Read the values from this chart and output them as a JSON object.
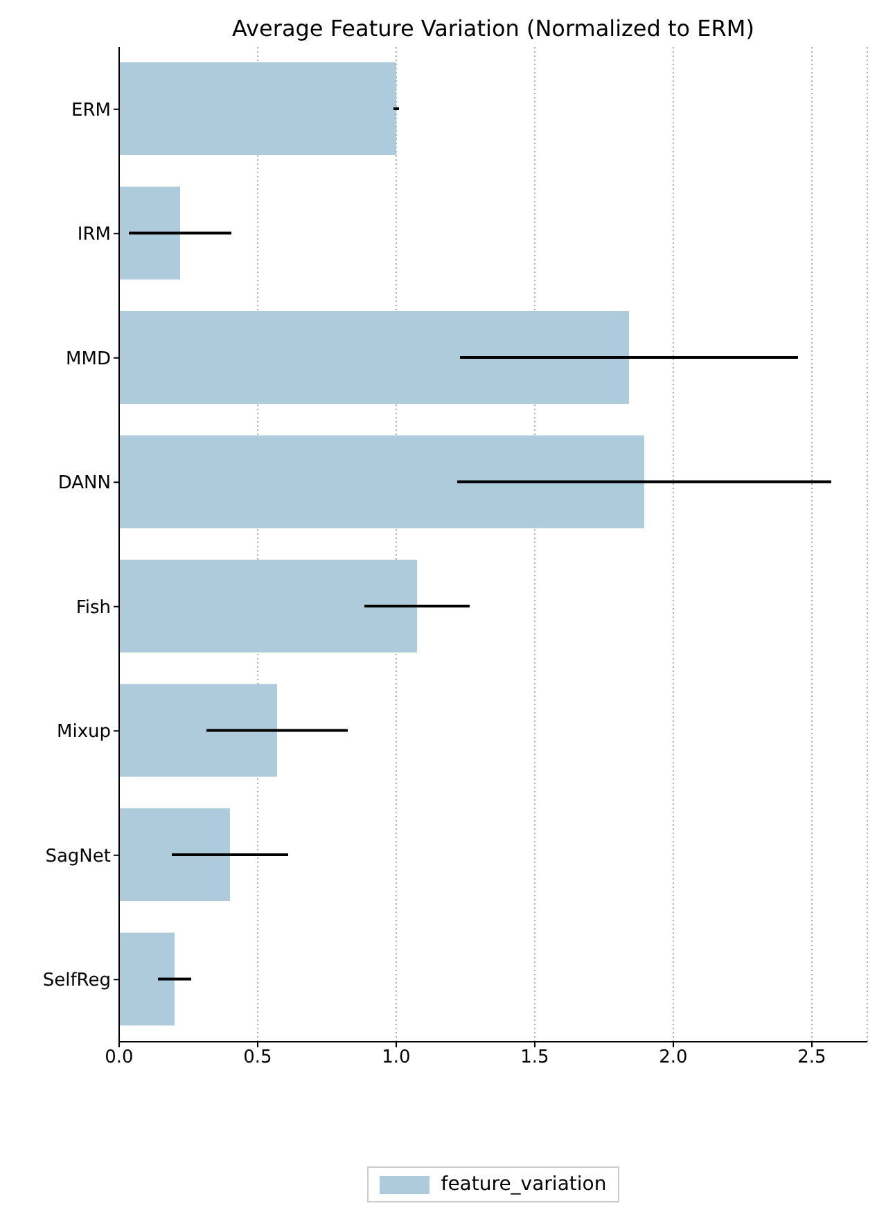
{
  "chart_data": {
    "type": "bar",
    "orientation": "horizontal",
    "title": "Average Feature Variation (Normalized to ERM)",
    "categories": [
      "ERM",
      "IRM",
      "MMD",
      "DANN",
      "Fish",
      "Mixup",
      "SagNet",
      "SelfReg"
    ],
    "series": [
      {
        "name": "feature_variation",
        "color": "#aecbdc",
        "values": [
          1.0,
          0.22,
          1.84,
          1.895,
          1.075,
          0.57,
          0.4,
          0.2
        ],
        "errors": [
          0.01,
          0.185,
          0.61,
          0.675,
          0.19,
          0.255,
          0.21,
          0.06
        ]
      }
    ],
    "xlim": [
      0,
      2.7
    ],
    "xticks": [
      {
        "value": 0,
        "label": "0.0"
      },
      {
        "value": 0.5,
        "label": "0.5"
      },
      {
        "value": 1,
        "label": "1.0"
      },
      {
        "value": 1.5,
        "label": "1.5"
      },
      {
        "value": 2,
        "label": "2.0"
      },
      {
        "value": 2.5,
        "label": "2.5"
      }
    ],
    "grid": "x",
    "legend": "bottom"
  }
}
